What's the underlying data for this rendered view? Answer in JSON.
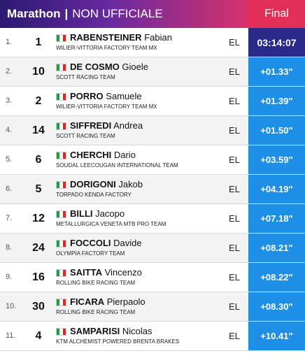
{
  "header": {
    "title_main": "Marathon",
    "separator": "|",
    "title_sub": "NON UFFICIALE",
    "final_label": "Final"
  },
  "colors": {
    "time_cell": "#1e8fe6",
    "leader_time_cell": "#2a2a8a",
    "final_header": "#e12f57"
  },
  "rows": [
    {
      "rank": "1.",
      "bib": "1",
      "last": "RABENSTEINER",
      "first": "Fabian",
      "team": "WILIER-VITTORIA FACTORY TEAM MX",
      "cat": "EL",
      "time": "03:14:07"
    },
    {
      "rank": "2.",
      "bib": "10",
      "last": "DE COSMO",
      "first": "Gioele",
      "team": "SCOTT RACING TEAM",
      "cat": "EL",
      "time": "+01.33\""
    },
    {
      "rank": "3.",
      "bib": "2",
      "last": "PORRO",
      "first": "Samuele",
      "team": "WILIER-VITTORIA FACTORY TEAM MX",
      "cat": "EL",
      "time": "+01.39\""
    },
    {
      "rank": "4.",
      "bib": "14",
      "last": "SIFFREDI",
      "first": "Andrea",
      "team": "SCOTT RACING TEAM",
      "cat": "EL",
      "time": "+01.50\""
    },
    {
      "rank": "5.",
      "bib": "6",
      "last": "CHERCHI",
      "first": "Dario",
      "team": "SOUDAL LEECOUGAN INTERNATIONAL TEAM",
      "cat": "EL",
      "time": "+03.59\""
    },
    {
      "rank": "6.",
      "bib": "5",
      "last": "DORIGONI",
      "first": "Jakob",
      "team": "TORPADO KENDA FACTORY",
      "cat": "EL",
      "time": "+04.19\""
    },
    {
      "rank": "7.",
      "bib": "12",
      "last": "BILLI",
      "first": "Jacopo",
      "team": "METALLURGICA VENETA MTB PRO TEAM",
      "cat": "EL",
      "time": "+07.18\""
    },
    {
      "rank": "8.",
      "bib": "24",
      "last": "FOCCOLI",
      "first": "Davide",
      "team": "OLYMPIA FACTORY TEAM",
      "cat": "EL",
      "time": "+08.21\""
    },
    {
      "rank": "9.",
      "bib": "16",
      "last": "SAITTA",
      "first": "Vincenzo",
      "team": "ROLLING BIKE RACING TEAM",
      "cat": "EL",
      "time": "+08.22\""
    },
    {
      "rank": "10.",
      "bib": "30",
      "last": "FICARA",
      "first": "Pierpaolo",
      "team": "ROLLING BIKE RACING TEAM",
      "cat": "EL",
      "time": "+08.30\""
    },
    {
      "rank": "11.",
      "bib": "4",
      "last": "SAMPARISI",
      "first": "Nicolas",
      "team": "KTM ALCHEMIST POWERED BRENTA BRAKES",
      "cat": "EL",
      "time": "+10.41\""
    }
  ]
}
